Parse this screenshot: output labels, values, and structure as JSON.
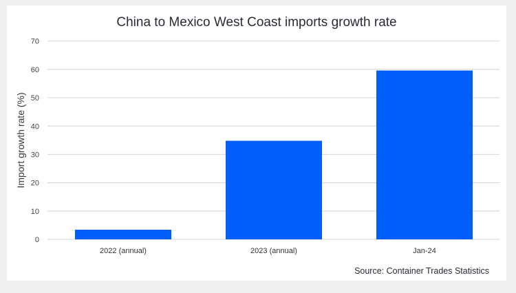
{
  "chart_data": {
    "type": "bar",
    "title": "China to Mexico West Coast imports growth rate",
    "xlabel": "",
    "ylabel": "Import growth rate (%)",
    "categories": [
      "2022 (annual)",
      "2023 (annual)",
      "Jan-24"
    ],
    "values": [
      3.4,
      34.8,
      59.6
    ],
    "ylim": [
      0,
      70
    ],
    "yticks": [
      0,
      10,
      20,
      30,
      40,
      50,
      60,
      70
    ],
    "grid": true,
    "bar_color": "#025ef9",
    "source": "Source: Container Trades Statistics"
  }
}
